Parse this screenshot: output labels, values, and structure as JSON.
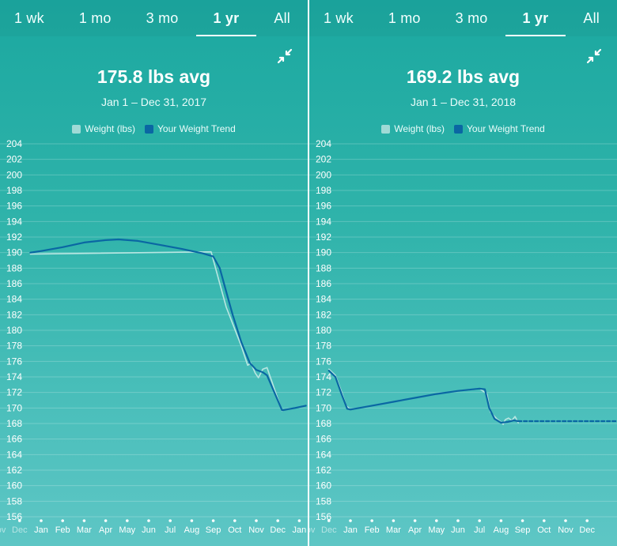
{
  "panels": [
    {
      "tabs": [
        "1 wk",
        "1 mo",
        "3 mo",
        "1 yr",
        "All"
      ],
      "active_tab": 3,
      "avg_text": "175.8 lbs avg",
      "date_range": "Jan 1 – Dec 31, 2017",
      "collapse_icon": "collapse-arrows-icon",
      "legend": [
        {
          "label": "Weight (lbs)",
          "color": "#9fdad6"
        },
        {
          "label": "Your Weight Trend",
          "color": "#0a67a3"
        }
      ]
    },
    {
      "tabs": [
        "1 wk",
        "1 mo",
        "3 mo",
        "1 yr",
        "All"
      ],
      "active_tab": 3,
      "avg_text": "169.2 lbs avg",
      "date_range": "Jan 1 – Dec 31, 2018",
      "collapse_icon": "collapse-arrows-icon",
      "legend": [
        {
          "label": "Weight (lbs)",
          "color": "#9fdad6"
        },
        {
          "label": "Your Weight Trend",
          "color": "#0a67a3"
        }
      ]
    }
  ],
  "chart_data": [
    {
      "type": "line",
      "ylabel": "",
      "ylim": [
        156,
        204
      ],
      "yticks": [
        156,
        158,
        160,
        162,
        164,
        166,
        168,
        170,
        172,
        174,
        176,
        178,
        180,
        182,
        184,
        186,
        188,
        190,
        192,
        194,
        196,
        198,
        200,
        202,
        204
      ],
      "month_labels": [
        "Nov",
        "Dec",
        "Jan",
        "Feb",
        "Mar",
        "Apr",
        "May",
        "Jun",
        "Jul",
        "Aug",
        "Sep",
        "Oct",
        "Nov",
        "Dec",
        "Jan"
      ],
      "grid": true,
      "series": [
        {
          "name": "Weight (lbs)",
          "color": "#b9e6e2",
          "points": [
            [
              -0.5,
              189.8
            ],
            [
              7.9,
              190.1
            ],
            [
              8.6,
              183.0
            ],
            [
              9.3,
              178.0
            ],
            [
              9.6,
              175.5
            ],
            [
              9.75,
              175.8
            ],
            [
              9.95,
              174.5
            ],
            [
              10.1,
              173.9
            ],
            [
              10.3,
              175.0
            ],
            [
              10.5,
              175.2
            ],
            [
              10.6,
              174.4
            ],
            [
              11.2,
              169.6
            ]
          ]
        },
        {
          "name": "Your Weight Trend",
          "color": "#0a67a3",
          "points": [
            [
              -0.5,
              190.0
            ],
            [
              0,
              190.2
            ],
            [
              1,
              190.7
            ],
            [
              2,
              191.3
            ],
            [
              3,
              191.6
            ],
            [
              3.6,
              191.7
            ],
            [
              4.5,
              191.5
            ],
            [
              5.5,
              191.0
            ],
            [
              6.5,
              190.5
            ],
            [
              7.5,
              189.9
            ],
            [
              8.0,
              189.5
            ],
            [
              8.3,
              188.0
            ],
            [
              8.6,
              185.0
            ],
            [
              8.9,
              182.0
            ],
            [
              9.3,
              178.5
            ],
            [
              9.7,
              175.8
            ],
            [
              10.0,
              174.9
            ],
            [
              10.3,
              174.6
            ],
            [
              10.5,
              174.2
            ],
            [
              11.2,
              169.7
            ],
            [
              11.8,
              170.0
            ],
            [
              12.3,
              170.3
            ]
          ]
        }
      ]
    },
    {
      "type": "line",
      "ylabel": "",
      "ylim": [
        156,
        204
      ],
      "yticks": [
        156,
        158,
        160,
        162,
        164,
        166,
        168,
        170,
        172,
        174,
        176,
        178,
        180,
        182,
        184,
        186,
        188,
        190,
        192,
        194,
        196,
        198,
        200,
        202,
        204
      ],
      "month_labels": [
        "Nov",
        "Dec",
        "Jan",
        "Feb",
        "Mar",
        "Apr",
        "May",
        "Jun",
        "Jul",
        "Aug",
        "Sep",
        "Oct",
        "Nov",
        "Dec"
      ],
      "grid": true,
      "series": [
        {
          "name": "Weight (lbs)",
          "color": "#b9e6e2",
          "points": [
            [
              -1.0,
              175.0
            ],
            [
              -0.7,
              174.2
            ],
            [
              -0.4,
              172.0
            ],
            [
              -0.2,
              170.3
            ],
            [
              0,
              169.8
            ],
            [
              1,
              170.3
            ],
            [
              2,
              170.8
            ],
            [
              3,
              171.3
            ],
            [
              4,
              171.8
            ],
            [
              5,
              172.2
            ],
            [
              6,
              172.5
            ],
            [
              6.35,
              171.8
            ],
            [
              6.5,
              169.5
            ],
            [
              6.8,
              168.6
            ],
            [
              7.0,
              168.2
            ],
            [
              7.1,
              167.9
            ],
            [
              7.2,
              168.5
            ],
            [
              7.35,
              168.7
            ],
            [
              7.5,
              168.4
            ],
            [
              7.65,
              168.9
            ],
            [
              7.8,
              168.1
            ]
          ]
        },
        {
          "name": "Your Weight Trend",
          "color": "#0a67a3",
          "points": [
            [
              -1.0,
              174.8
            ],
            [
              -0.7,
              174.0
            ],
            [
              -0.4,
              171.7
            ],
            [
              -0.15,
              169.9
            ],
            [
              0,
              169.8
            ],
            [
              1,
              170.3
            ],
            [
              2,
              170.8
            ],
            [
              3,
              171.3
            ],
            [
              4,
              171.8
            ],
            [
              5,
              172.2
            ],
            [
              6,
              172.5
            ],
            [
              6.25,
              172.4
            ],
            [
              6.45,
              170.0
            ],
            [
              6.7,
              168.6
            ],
            [
              7.0,
              168.1
            ],
            [
              7.3,
              168.2
            ],
            [
              7.6,
              168.4
            ],
            [
              7.8,
              168.3
            ]
          ]
        },
        {
          "name": "",
          "color": "#0a67a3",
          "dashed": true,
          "points": [
            [
              7.8,
              168.3
            ],
            [
              12.8,
              168.3
            ]
          ]
        }
      ]
    }
  ]
}
